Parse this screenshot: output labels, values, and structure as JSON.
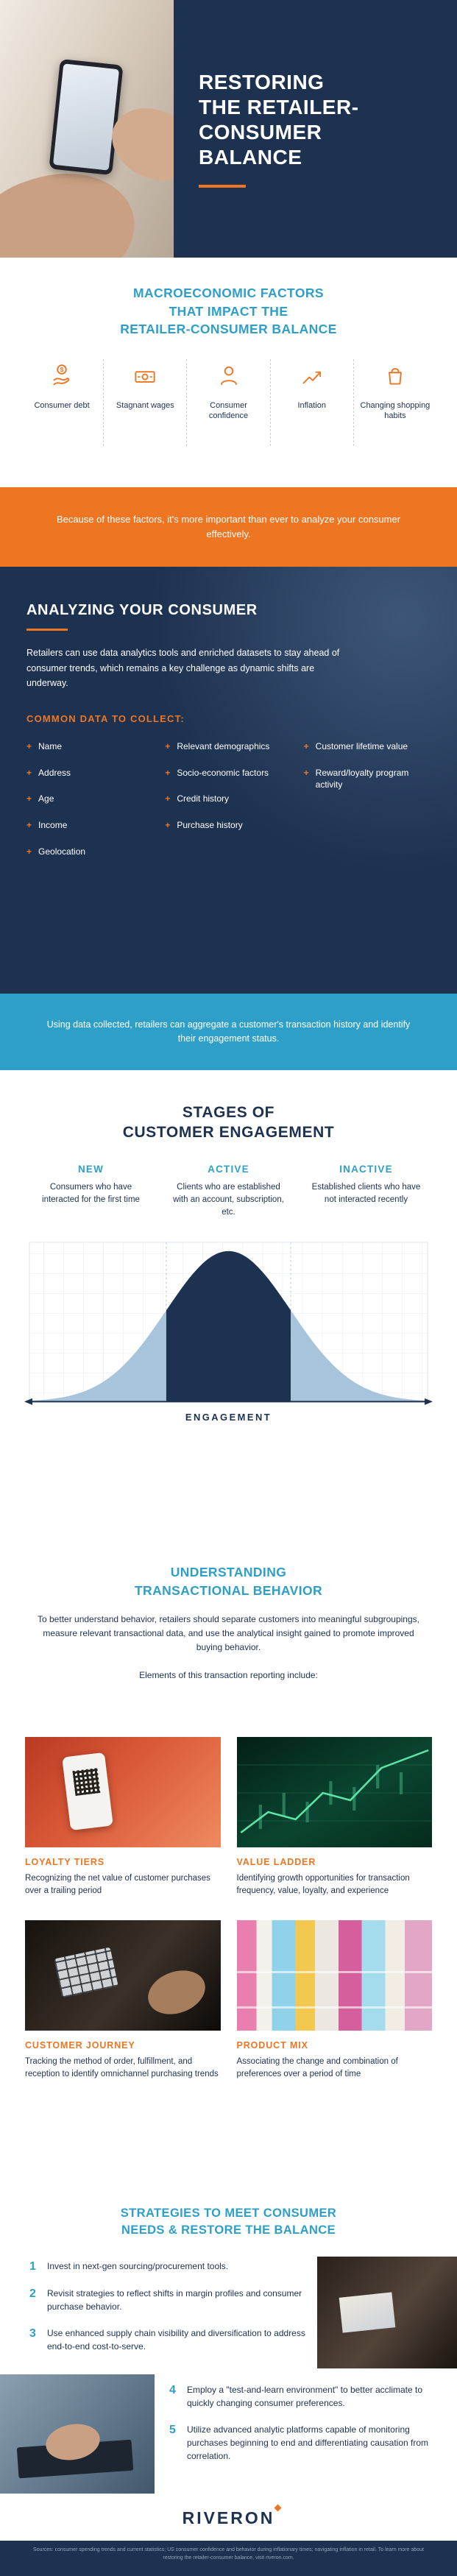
{
  "theme": {
    "navy": "#1d3150",
    "orange": "#ee7623",
    "blue": "#2d9fc9",
    "curve_tail": "#a7c4db",
    "curve_center": "#1d3150"
  },
  "header": {
    "title": "RESTORING THE RETAILER-CONSUMER BALANCE",
    "title_lines": [
      "RESTORING",
      "THE RETAILER-",
      "CONSUMER",
      "BALANCE"
    ]
  },
  "macro": {
    "heading_lines": [
      "MACROECONOMIC FACTORS",
      "THAT IMPACT THE",
      "RETAILER-CONSUMER BALANCE"
    ],
    "factors": [
      {
        "label": "Consumer debt",
        "icon": "hand-coin-icon"
      },
      {
        "label": "Stagnant wages",
        "icon": "banknote-icon"
      },
      {
        "label": "Consumer confidence",
        "icon": "person-icon"
      },
      {
        "label": "Inflation",
        "icon": "rising-arrow-icon"
      },
      {
        "label": "Changing shopping habits",
        "icon": "shopping-bag-icon"
      }
    ]
  },
  "banners": {
    "orange": "Because of these factors, it's more important than ever to analyze your consumer effectively.",
    "blue": "Using data collected, retailers can aggregate a customer's transaction history and identify their engagement status."
  },
  "analyzing": {
    "heading": "ANALYZING YOUR CONSUMER",
    "paragraph": "Retailers can use data analytics tools and enriched datasets to stay ahead of consumer trends, which remains a key challenge as dynamic shifts are underway.",
    "subheading": "COMMON DATA TO COLLECT:",
    "bullet": "+",
    "columns": [
      [
        "Name",
        "Address",
        "Age",
        "Income",
        "Geolocation"
      ],
      [
        "Relevant demographics",
        "Socio-economic factors",
        "Credit history",
        "Purchase history"
      ],
      [
        "Customer lifetime value",
        "Reward/loyalty program activity"
      ]
    ]
  },
  "stages": {
    "heading_lines": [
      "STAGES OF",
      "CUSTOMER ENGAGEMENT"
    ],
    "stages": [
      {
        "name": "NEW",
        "description": "Consumers who have interacted for the first time"
      },
      {
        "name": "ACTIVE",
        "description": "Clients who are established with an account, subscription, etc."
      },
      {
        "name": "INACTIVE",
        "description": "Established clients who have not interacted recently"
      }
    ],
    "axis_label": "ENGAGEMENT"
  },
  "chart_data": {
    "type": "area",
    "title": "Stages of Customer Engagement",
    "xlabel": "ENGAGEMENT",
    "curve": "normal-distribution",
    "x_domain": [
      -3.2,
      3.2
    ],
    "sigma_boundaries": [
      -1,
      1
    ],
    "regions": [
      {
        "name": "NEW",
        "range": [
          -3.2,
          -1
        ],
        "color": "#a7c4db"
      },
      {
        "name": "ACTIVE",
        "range": [
          -1,
          1
        ],
        "color": "#1d3150"
      },
      {
        "name": "INACTIVE",
        "range": [
          1,
          3.2
        ],
        "color": "#a7c4db"
      }
    ],
    "grid": true,
    "legend_position": "none"
  },
  "transactional": {
    "heading_lines": [
      "UNDERSTANDING",
      "TRANSACTIONAL BEHAVIOR"
    ],
    "paragraph": "To better understand behavior, retailers should separate customers into meaningful subgroupings, measure relevant transactional data, and use the analytical insight gained to promote improved buying behavior.",
    "lead_in": "Elements of this transaction reporting include:"
  },
  "cards": [
    {
      "title": "LOYALTY TIERS",
      "text": "Recognizing the net value of customer purchases over a trailing period",
      "photo": "phone-qr-code-photo"
    },
    {
      "title": "VALUE LADDER",
      "text": "Identifying growth opportunities for transaction frequency, value, loyalty, and experience",
      "photo": "stock-chart-photo"
    },
    {
      "title": "CUSTOMER JOURNEY",
      "text": "Tracking the method of order, fulfillment, and reception to identify omnichannel purchasing trends",
      "photo": "payment-device-photo"
    },
    {
      "title": "PRODUCT MIX",
      "text": "Associating the change and combination of preferences over a period of time",
      "photo": "retail-products-photo"
    }
  ],
  "strategies": {
    "heading_lines": [
      "STRATEGIES TO MEET CONSUMER",
      "NEEDS & RESTORE THE BALANCE"
    ],
    "items": [
      {
        "n": "1",
        "text": "Invest in next-gen sourcing/procurement tools."
      },
      {
        "n": "2",
        "text": "Revisit strategies to reflect shifts in margin profiles and consumer purchase behavior."
      },
      {
        "n": "3",
        "text": "Use enhanced supply chain visibility and diversification to address end-to-end cost-to-serve."
      },
      {
        "n": "4",
        "text": "Employ a \"test-and-learn environment\" to better acclimate to quickly changing consumer preferences."
      },
      {
        "n": "5",
        "text": "Utilize advanced analytic platforms capable of monitoring purchases beginning to end and differentiating causation from correlation."
      }
    ]
  },
  "footer": {
    "logo_text": "RIVERON",
    "sources": "Sources: consumer spending trends and current statistics; US consumer confidence and behavior during inflationary times; navigating inflation in retail. To learn more about restoring the retailer-consumer balance, visit riveron.com."
  }
}
